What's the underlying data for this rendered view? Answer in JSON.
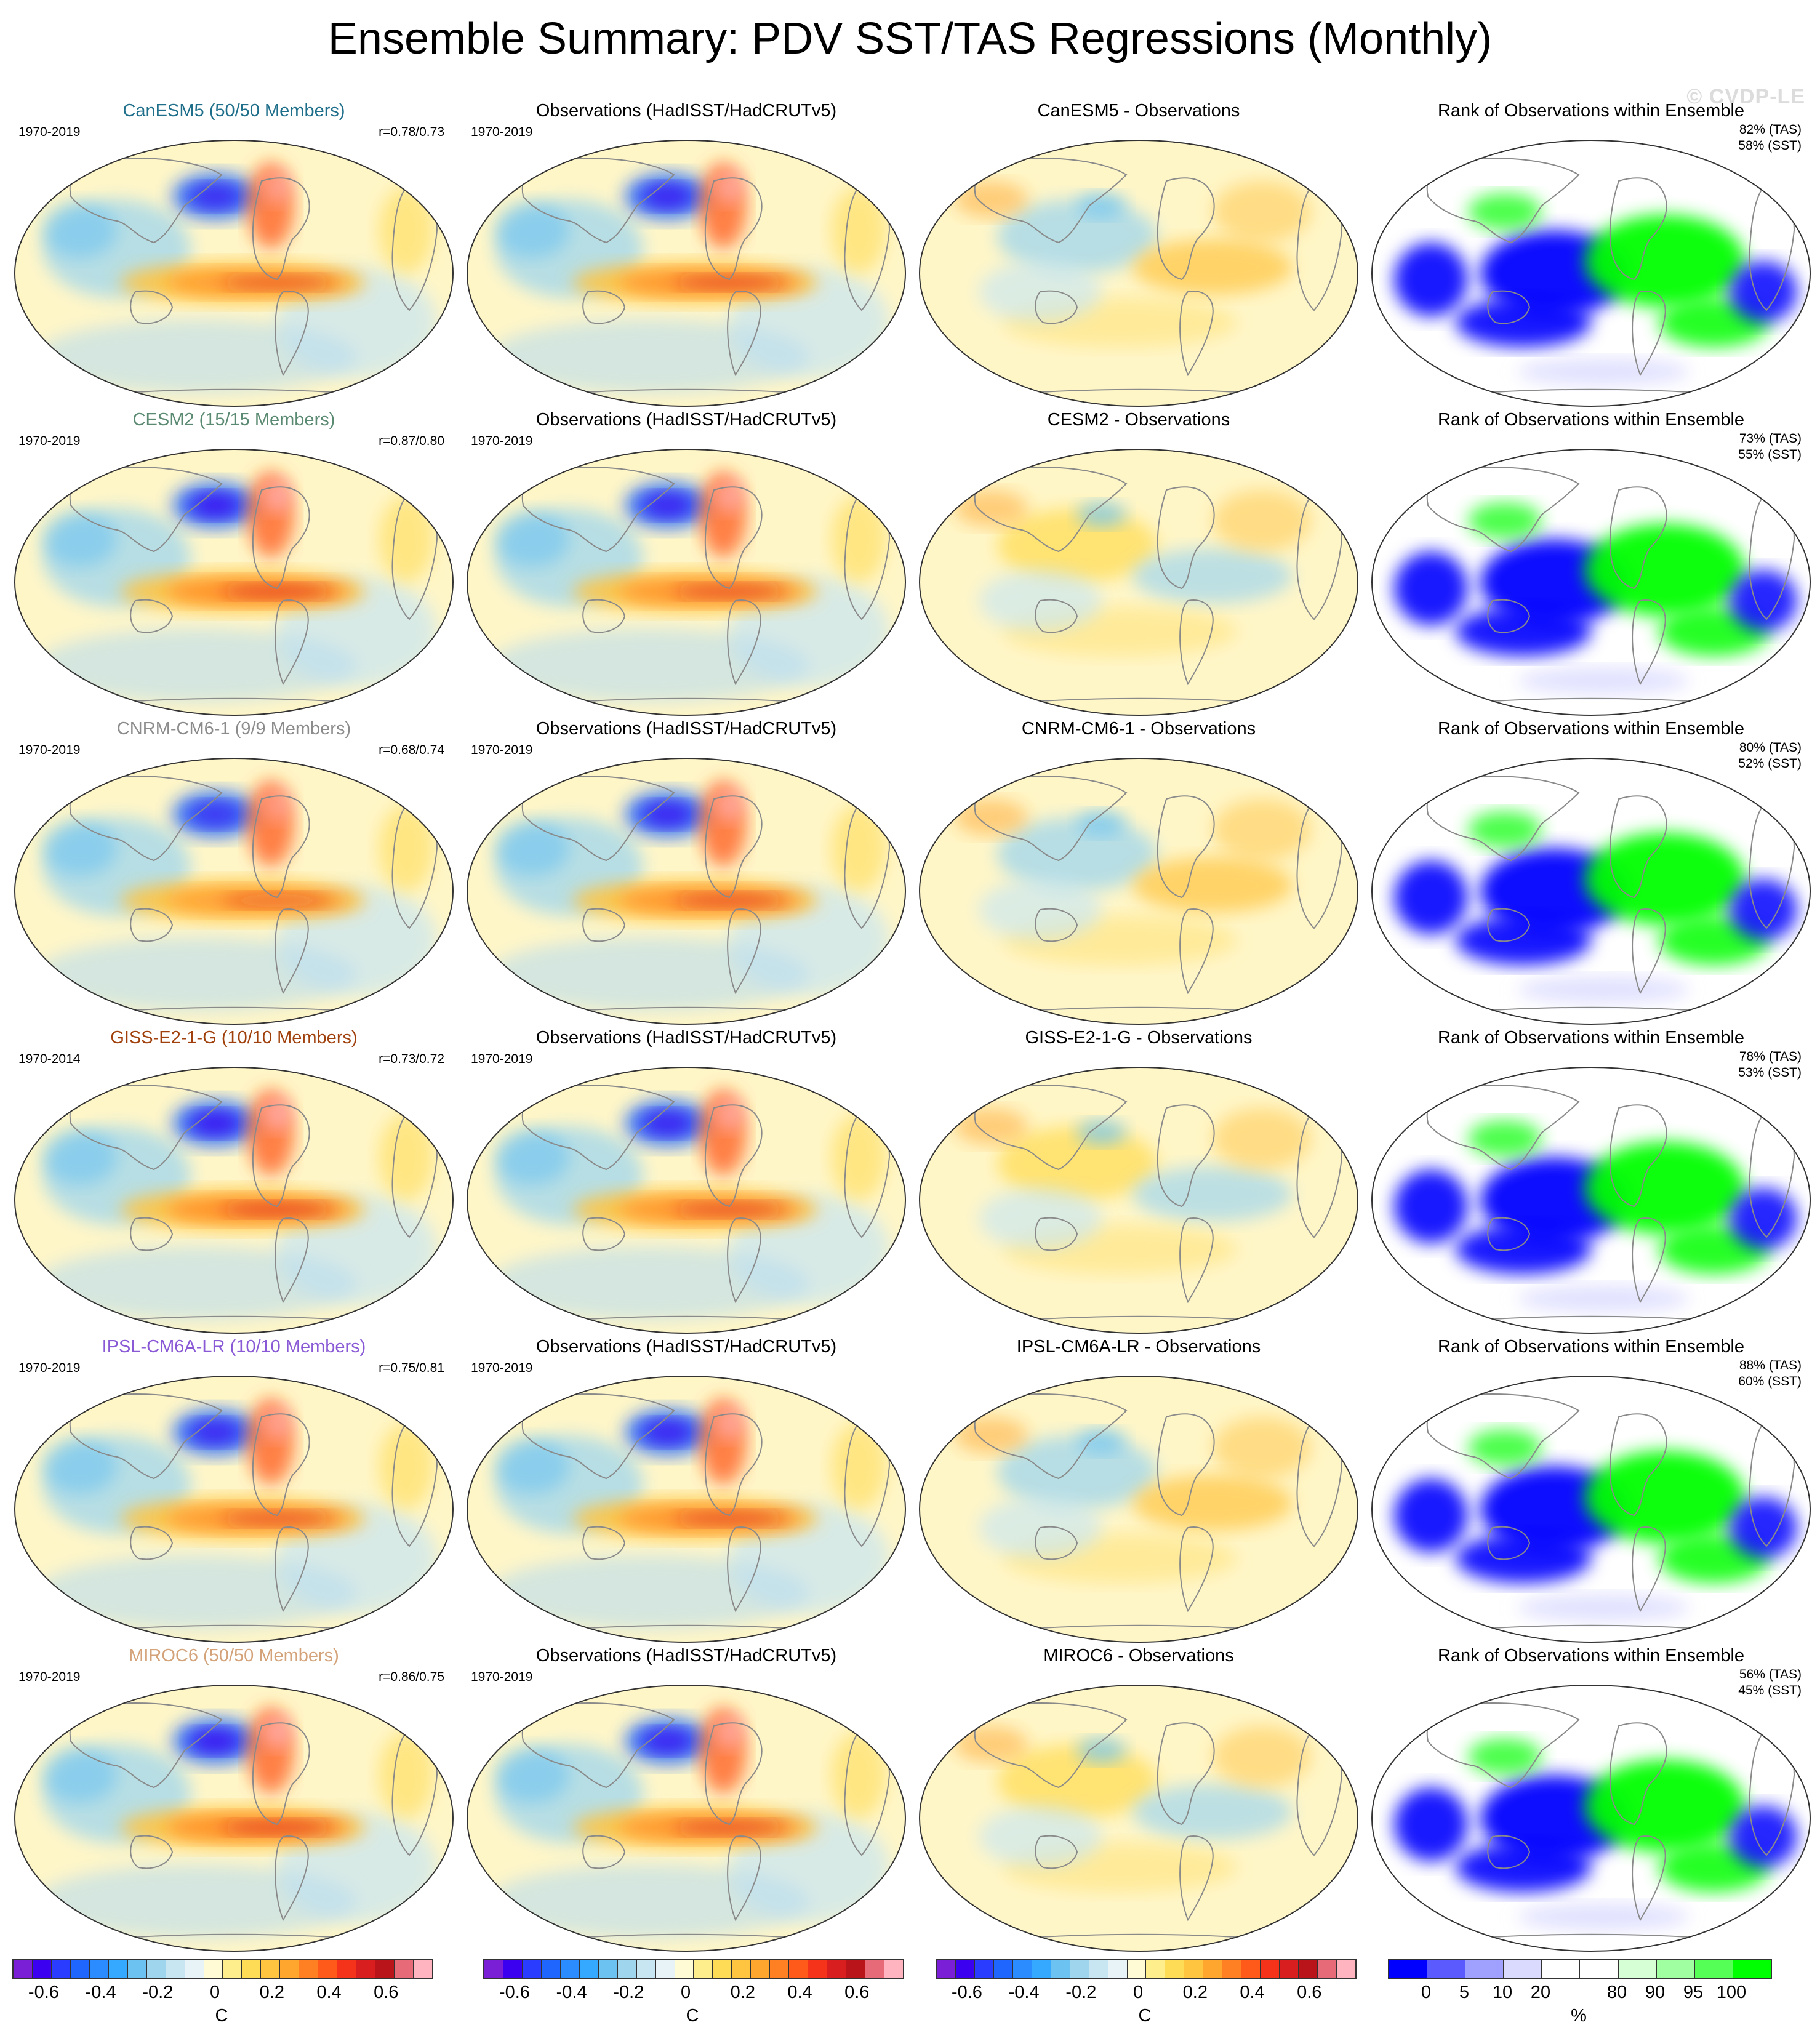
{
  "title": "Ensemble Summary: PDV SST/TAS Regressions (Monthly)",
  "watermark": "© CVDP-LE",
  "obs_title": "Observations (HadISST/HadCRUTv5)",
  "obs_period": "1970-2019",
  "rank_title": "Rank of Observations within Ensemble",
  "rows": [
    {
      "model_title": "CanESM5 (50/50 Members)",
      "title_color": "#1f6f8b",
      "period": "1970-2019",
      "corr": "r=0.78/0.73",
      "diff_title": "CanESM5 - Observations",
      "rank_tas": "82% (TAS)",
      "rank_sst": "58% (SST)"
    },
    {
      "model_title": "CESM2 (15/15 Members)",
      "title_color": "#5b8a72",
      "period": "1970-2019",
      "corr": "r=0.87/0.80",
      "diff_title": "CESM2 - Observations",
      "rank_tas": "73% (TAS)",
      "rank_sst": "55% (SST)"
    },
    {
      "model_title": "CNRM-CM6-1 (9/9 Members)",
      "title_color": "#8c8c8c",
      "period": "1970-2019",
      "corr": "r=0.68/0.74",
      "diff_title": "CNRM-CM6-1 - Observations",
      "rank_tas": "80% (TAS)",
      "rank_sst": "52% (SST)"
    },
    {
      "model_title": "GISS-E2-1-G (10/10 Members)",
      "title_color": "#a0410d",
      "period": "1970-2014",
      "corr": "r=0.73/0.72",
      "diff_title": "GISS-E2-1-G - Observations",
      "rank_tas": "78% (TAS)",
      "rank_sst": "53% (SST)"
    },
    {
      "model_title": "IPSL-CM6A-LR (10/10 Members)",
      "title_color": "#8a5ad6",
      "period": "1970-2019",
      "corr": "r=0.75/0.81",
      "diff_title": "IPSL-CM6A-LR - Observations",
      "rank_tas": "88% (TAS)",
      "rank_sst": "60% (SST)"
    },
    {
      "model_title": "MIROC6 (50/50 Members)",
      "title_color": "#d4a37a",
      "period": "1970-2019",
      "corr": "r=0.86/0.75",
      "diff_title": "MIROC6 - Observations",
      "rank_tas": "56% (TAS)",
      "rank_sst": "45% (SST)"
    }
  ],
  "regression_colorbar": {
    "colors": [
      "#7a1fd6",
      "#3b00f0",
      "#2a3cff",
      "#1f66ff",
      "#2a8cff",
      "#35a8ff",
      "#6cc3f2",
      "#9fd6ee",
      "#c8e6f2",
      "#e8f3f7",
      "#fffbd4",
      "#ffef8c",
      "#ffdc55",
      "#ffc440",
      "#ffa62e",
      "#ff8022",
      "#ff5a1a",
      "#f5321a",
      "#d81e1e",
      "#b9141a",
      "#e66a78",
      "#ffb4bf"
    ],
    "ticks": [
      "-0.6",
      "-0.4",
      "-0.2",
      "0",
      "0.2",
      "0.4",
      "0.6"
    ],
    "unit": "C"
  },
  "rank_colorbar": {
    "colors": [
      "#0000ff",
      "#5a5aff",
      "#a0a0ff",
      "#dadaff",
      "#ffffff",
      "#ffffff",
      "#d6ffd6",
      "#a0ffa0",
      "#55ff55",
      "#00ff00"
    ],
    "ticks": [
      "0",
      "5",
      "10",
      "20",
      "80",
      "90",
      "95",
      "100"
    ],
    "unit": "%"
  }
}
